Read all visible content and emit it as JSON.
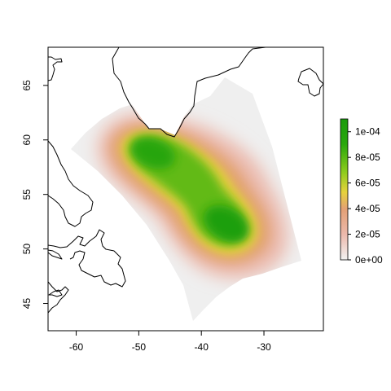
{
  "chart_data": {
    "type": "heatmap",
    "title": "",
    "xlabel": "",
    "ylabel": "",
    "xlim": [
      -64.5,
      -20.5
    ],
    "ylim": [
      42.5,
      68.5
    ],
    "x_ticks": [
      {
        "value": -60,
        "label": "-60"
      },
      {
        "value": -50,
        "label": "-50"
      },
      {
        "value": -40,
        "label": "-40"
      },
      {
        "value": -30,
        "label": "-30"
      }
    ],
    "y_ticks": [
      {
        "value": 45,
        "label": "45"
      },
      {
        "value": 50,
        "label": "50"
      },
      {
        "value": 55,
        "label": "55"
      },
      {
        "value": 60,
        "label": "60"
      },
      {
        "value": 65,
        "label": "65"
      }
    ],
    "density_peaks": [
      {
        "lon": -47.5,
        "lat": 59.0,
        "density": 0.00011
      },
      {
        "lon": -36.5,
        "lat": 52.2,
        "density": 0.000105
      }
    ],
    "colorbar": {
      "range": [
        0,
        0.00011
      ],
      "ticks": [
        {
          "value": 0,
          "label": "0e+00"
        },
        {
          "value": 2e-05,
          "label": "2e-05"
        },
        {
          "value": 4e-05,
          "label": "4e-05"
        },
        {
          "value": 6e-05,
          "label": "6e-05"
        },
        {
          "value": 8e-05,
          "label": "8e-05"
        },
        {
          "value": 0.0001,
          "label": "1e-04"
        }
      ],
      "colors": [
        "#f2f2f2",
        "#ecb9ac",
        "#e3a075",
        "#e6d23c",
        "#8fcc1e",
        "#2aa80c",
        "#1a9b0c"
      ]
    },
    "grid": false,
    "legend_position": "right"
  }
}
